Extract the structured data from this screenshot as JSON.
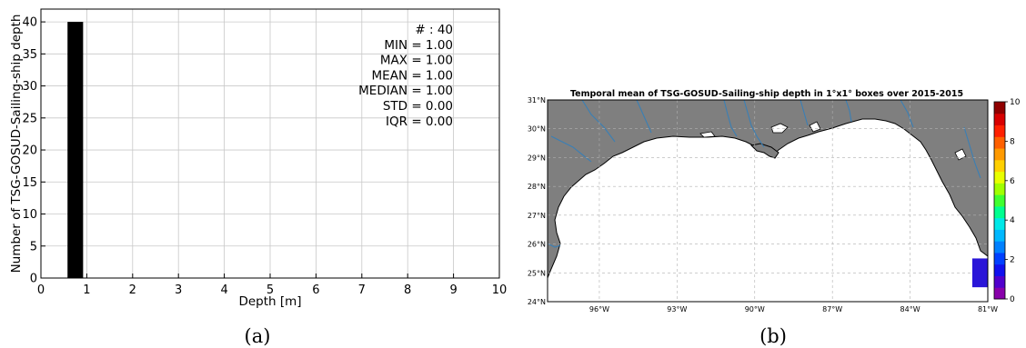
{
  "chart_data": [
    {
      "type": "bar",
      "panel_label": "(a)",
      "xlabel": "Depth [m]",
      "ylabel": "Number of TSG-GOSUD-Sailing-ship depth",
      "xlim": [
        0,
        10
      ],
      "ylim": [
        0,
        42
      ],
      "x_ticks": [
        "0",
        "1",
        "2",
        "3",
        "4",
        "5",
        "6",
        "7",
        "8",
        "9",
        "10"
      ],
      "y_ticks": [
        "0",
        "5",
        "10",
        "15",
        "20",
        "25",
        "30",
        "35",
        "40"
      ],
      "grid": true,
      "bars": [
        {
          "x_start": 0.58,
          "x_end": 0.92,
          "value": 40
        }
      ],
      "stats": [
        "# : 40",
        "MIN = 1.00",
        "MAX =  1.00",
        "MEAN = 1.00",
        "MEDIAN = 1.00",
        "STD = 0.00",
        "IQR = 0.00"
      ],
      "bar_color": "#000000"
    },
    {
      "type": "heatmap",
      "panel_label": "(b)",
      "title": "Temporal mean of TSG-GOSUD-Sailing-ship depth in 1°x1° boxes over 2015-2015",
      "lon_range": [
        -98,
        -81
      ],
      "lat_range": [
        24,
        31
      ],
      "lon_ticks": [
        "96°W",
        "93°W",
        "90°W",
        "87°W",
        "84°W",
        "81°W"
      ],
      "lat_ticks": [
        "24°N",
        "25°N",
        "26°N",
        "27°N",
        "28°N",
        "29°N",
        "30°N",
        "31°N"
      ],
      "grid": true,
      "cells": [
        {
          "lon": [
            -81.6,
            -81.0
          ],
          "lat": [
            24.5,
            25.5
          ],
          "value": 1.0
        }
      ],
      "colorbar": {
        "range": [
          0,
          10
        ],
        "ticks": [
          "0",
          "2",
          "4",
          "6",
          "8",
          "10"
        ],
        "colors": [
          "#8800aa",
          "#5000cc",
          "#1010ee",
          "#0040ff",
          "#0080ff",
          "#00b8ff",
          "#00e8e8",
          "#00ff90",
          "#40ff30",
          "#a0ff00",
          "#e8ff00",
          "#ffd000",
          "#ff9a00",
          "#ff6000",
          "#ff2000",
          "#d80000",
          "#900000"
        ]
      },
      "land_color": "#7f7f7f",
      "ocean_color": "#ffffff",
      "river_color": "#3a7fb5",
      "cell_color": "#2a16d8"
    }
  ]
}
